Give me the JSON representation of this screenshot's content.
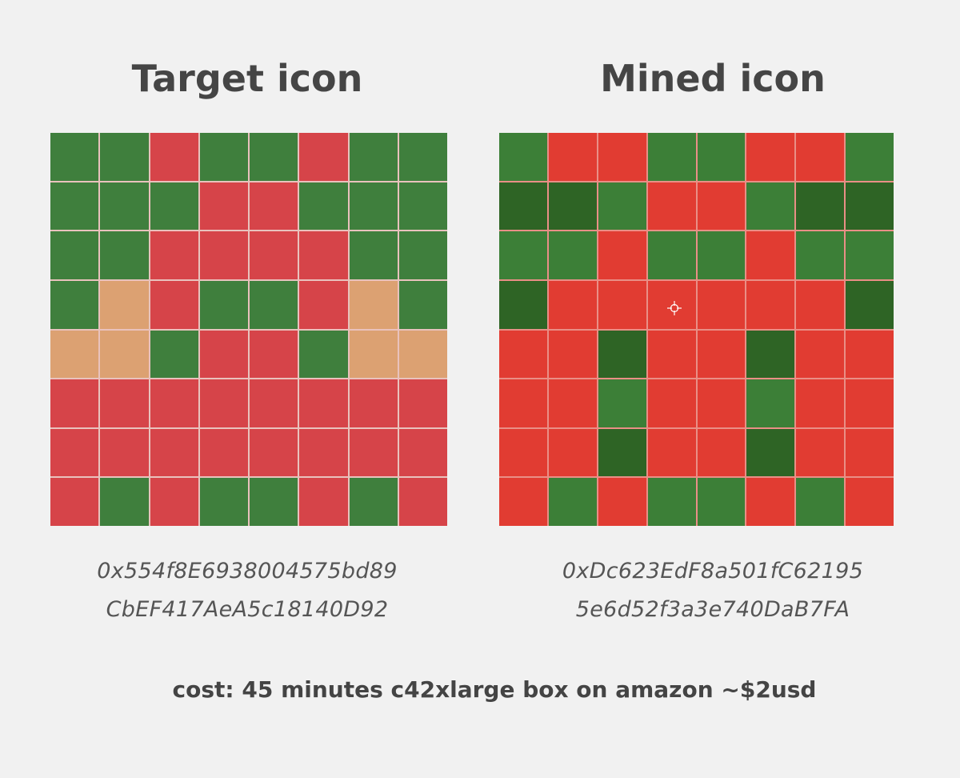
{
  "colors": {
    "background": "#f1f1f1",
    "target_palette": {
      "G": "#3f7f3d",
      "R": "#d64449",
      "T": "#dca172"
    },
    "mined_palette": {
      "G": "#3c7f37",
      "D": "#2e6425",
      "R": "#e13c32"
    }
  },
  "target": {
    "title": "Target icon",
    "address_line1": "0x554f8E6938004575bd89",
    "address_line2": "CbEF417AeA5c18140D92",
    "grid": [
      [
        "G",
        "G",
        "R",
        "G",
        "G",
        "R",
        "G",
        "G"
      ],
      [
        "G",
        "G",
        "G",
        "R",
        "R",
        "G",
        "G",
        "G"
      ],
      [
        "G",
        "G",
        "R",
        "R",
        "R",
        "R",
        "G",
        "G"
      ],
      [
        "G",
        "T",
        "R",
        "G",
        "G",
        "R",
        "T",
        "G"
      ],
      [
        "T",
        "T",
        "G",
        "R",
        "R",
        "G",
        "T",
        "T"
      ],
      [
        "R",
        "R",
        "R",
        "R",
        "R",
        "R",
        "R",
        "R"
      ],
      [
        "R",
        "R",
        "R",
        "R",
        "R",
        "R",
        "R",
        "R"
      ],
      [
        "R",
        "G",
        "R",
        "G",
        "G",
        "R",
        "G",
        "R"
      ]
    ]
  },
  "mined": {
    "title": "Mined icon",
    "address_line1": "0xDc623EdF8a501fC62195",
    "address_line2": "5e6d52f3a3e740DaB7FA",
    "grid": [
      [
        "G",
        "R",
        "R",
        "G",
        "G",
        "R",
        "R",
        "G"
      ],
      [
        "D",
        "D",
        "G",
        "R",
        "R",
        "G",
        "D",
        "D"
      ],
      [
        "G",
        "G",
        "R",
        "G",
        "G",
        "R",
        "G",
        "G"
      ],
      [
        "D",
        "R",
        "R",
        "R",
        "R",
        "R",
        "R",
        "D"
      ],
      [
        "R",
        "R",
        "D",
        "R",
        "R",
        "D",
        "R",
        "R"
      ],
      [
        "R",
        "R",
        "G",
        "R",
        "R",
        "G",
        "R",
        "R"
      ],
      [
        "R",
        "R",
        "D",
        "R",
        "R",
        "D",
        "R",
        "R"
      ],
      [
        "R",
        "G",
        "R",
        "G",
        "G",
        "R",
        "G",
        "R"
      ]
    ]
  },
  "footer": {
    "cost": "cost: 45 minutes c42xlarge box on amazon ~$2usd"
  }
}
